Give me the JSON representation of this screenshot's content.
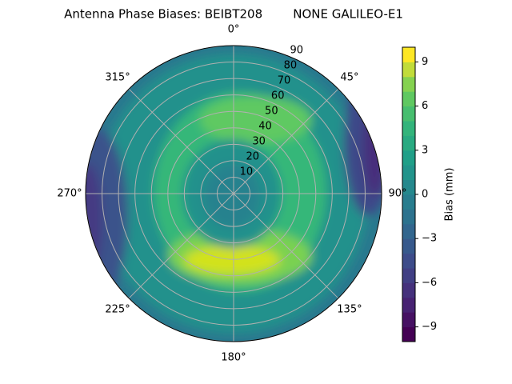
{
  "chart_data": {
    "type": "polar-contour",
    "title": "Antenna Phase Biases: BEIBT208        NONE GALILEO-E1",
    "colorbar_label": "Bias (mm)",
    "colormap": "viridis",
    "clim": [
      -10,
      10
    ],
    "cticks": [
      {
        "value": -9,
        "label": "−9"
      },
      {
        "value": -6,
        "label": "−6"
      },
      {
        "value": -3,
        "label": "−3"
      },
      0,
      3,
      6,
      9
    ],
    "rlim": [
      0,
      90
    ],
    "rticks": [
      10,
      20,
      30,
      40,
      50,
      60,
      70,
      80,
      90
    ],
    "thetaticks": [
      {
        "value": 0,
        "label": "0°"
      },
      {
        "value": 45,
        "label": "45°"
      },
      {
        "value": 90,
        "label": "90°"
      },
      {
        "value": 135,
        "label": "135°"
      },
      {
        "value": 180,
        "label": "180°"
      },
      {
        "value": 225,
        "label": "225°"
      },
      {
        "value": 270,
        "label": "270°"
      },
      {
        "value": 315,
        "label": "315°"
      }
    ],
    "grid": true
  }
}
